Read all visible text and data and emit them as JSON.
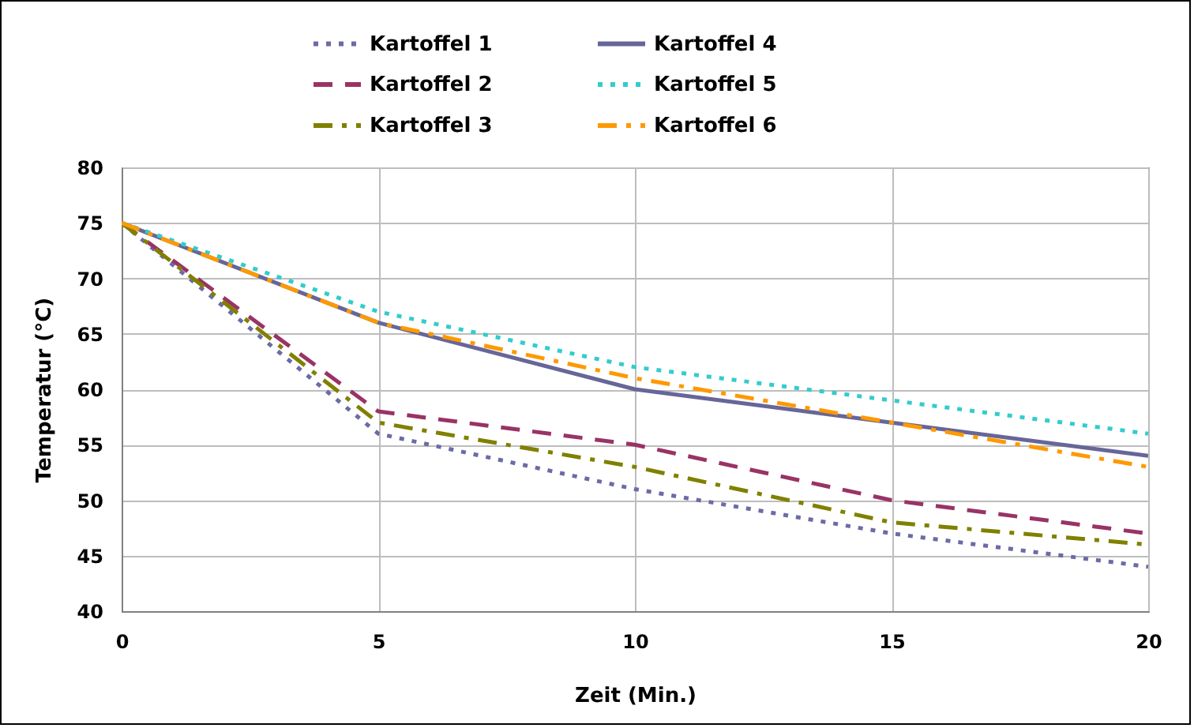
{
  "chart_data": {
    "type": "line",
    "xlabel": "Zeit (Min.)",
    "ylabel": "Temperatur (°C)",
    "x": [
      0,
      5,
      10,
      15,
      20
    ],
    "series": [
      {
        "name": "Kartoffel 1",
        "color": "#6b6ba6",
        "line_style": "dotted",
        "values": [
          75,
          56,
          51,
          47,
          44
        ]
      },
      {
        "name": "Kartoffel 2",
        "color": "#993366",
        "line_style": "dashed",
        "values": [
          75,
          58,
          55,
          50,
          47
        ]
      },
      {
        "name": "Kartoffel 3",
        "color": "#808000",
        "line_style": "dashdot",
        "values": [
          75,
          57,
          53,
          48,
          46
        ]
      },
      {
        "name": "Kartoffel 4",
        "color": "#666699",
        "line_style": "solid",
        "values": [
          75,
          66,
          60,
          57,
          54
        ]
      },
      {
        "name": "Kartoffel 5",
        "color": "#33cccc",
        "line_style": "dotted",
        "values": [
          75,
          67,
          62,
          59,
          56
        ]
      },
      {
        "name": "Kartoffel 6",
        "color": "#ff9900",
        "line_style": "dashdot",
        "values": [
          75,
          66,
          61,
          57,
          53
        ]
      }
    ],
    "xlim": [
      0,
      20
    ],
    "xticks": [
      0,
      5,
      10,
      15,
      20
    ],
    "ylim": [
      40,
      80
    ],
    "yticks": [
      40,
      45,
      50,
      55,
      60,
      65,
      70,
      75,
      80
    ],
    "grid": true,
    "legend": "top",
    "marker": "none"
  }
}
